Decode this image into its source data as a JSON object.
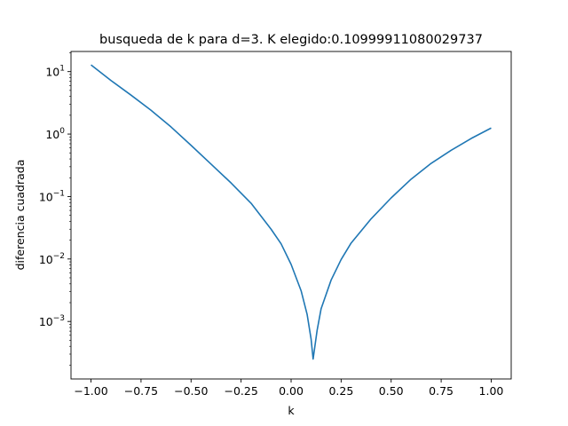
{
  "chart_data": {
    "type": "line",
    "title": "busqueda de k para d=3. K elegido:0.10999911080029737",
    "xlabel": "k",
    "ylabel": "diferencia cuadrada",
    "xlim": [
      -1.1,
      1.1
    ],
    "ylim": [
      0.00012,
      21
    ],
    "yscale": "log",
    "grid": false,
    "color": "#1f77b4",
    "x_ticks": [
      {
        "value": -1.0,
        "label": "−1.00"
      },
      {
        "value": -0.75,
        "label": "−0.75"
      },
      {
        "value": -0.5,
        "label": "−0.50"
      },
      {
        "value": -0.25,
        "label": "−0.25"
      },
      {
        "value": 0.0,
        "label": "0.00"
      },
      {
        "value": 0.25,
        "label": "0.25"
      },
      {
        "value": 0.5,
        "label": "0.50"
      },
      {
        "value": 0.75,
        "label": "0.75"
      },
      {
        "value": 1.0,
        "label": "1.00"
      }
    ],
    "y_ticks": [
      {
        "value": 0.001,
        "base": "10",
        "exp": "−3"
      },
      {
        "value": 0.01,
        "base": "10",
        "exp": "−2"
      },
      {
        "value": 0.1,
        "base": "10",
        "exp": "−1"
      },
      {
        "value": 1,
        "base": "10",
        "exp": "0"
      },
      {
        "value": 10,
        "base": "10",
        "exp": "1"
      }
    ],
    "series": [
      {
        "x": [
          -1.0,
          -0.9,
          -0.8,
          -0.7,
          -0.6,
          -0.5,
          -0.4,
          -0.3,
          -0.2,
          -0.1,
          -0.05,
          0.0,
          0.05,
          0.08,
          0.1,
          0.11,
          0.13,
          0.15,
          0.2,
          0.25,
          0.3,
          0.4,
          0.5,
          0.6,
          0.7,
          0.8,
          0.9,
          1.0
        ],
        "y": [
          12.8,
          7.2,
          4.2,
          2.4,
          1.3,
          0.66,
          0.33,
          0.165,
          0.078,
          0.03,
          0.0175,
          0.0082,
          0.0031,
          0.0013,
          0.00052,
          0.00025,
          0.00072,
          0.0016,
          0.0046,
          0.0098,
          0.018,
          0.044,
          0.095,
          0.19,
          0.34,
          0.55,
          0.85,
          1.25
        ]
      }
    ]
  }
}
